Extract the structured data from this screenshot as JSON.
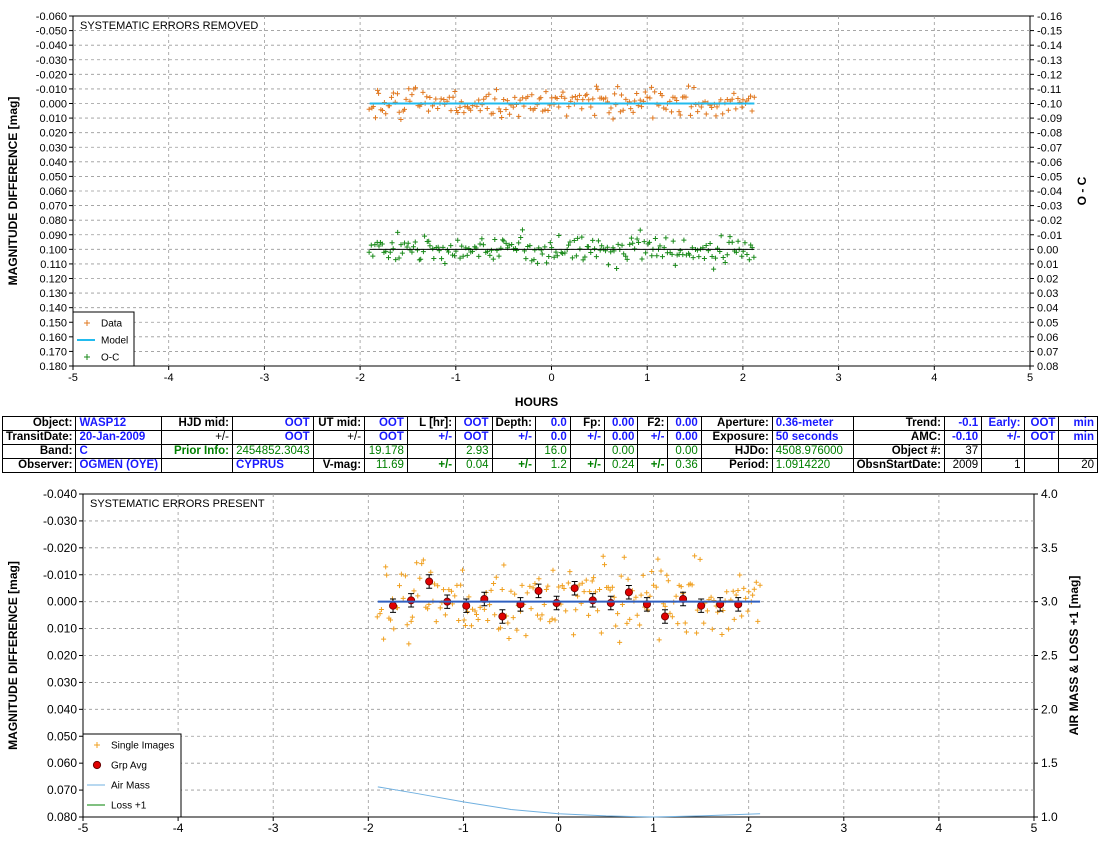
{
  "chart_data": [
    {
      "type": "scatter",
      "title": "SYSTEMATIC ERRORS REMOVED",
      "xlabel": "HOURS",
      "ylabel": "MAGNITUDE DIFFERENCE [mag]",
      "y2label": "O - C",
      "xlim": [
        -5,
        5
      ],
      "ylim": [
        -0.06,
        0.18
      ],
      "y_inverted": true,
      "y2lim": [
        -0.16,
        0.08
      ],
      "x_ticks": [
        "-5",
        "-4",
        "-3",
        "-2",
        "-1",
        "0",
        "1",
        "2",
        "3",
        "4",
        "5"
      ],
      "y_ticks": [
        "-0.060",
        "-0.050",
        "-0.040",
        "-0.030",
        "-0.020",
        "-0.010",
        "0.000",
        "0.010",
        "0.020",
        "0.030",
        "0.040",
        "0.050",
        "0.060",
        "0.070",
        "0.080",
        "0.090",
        "0.100",
        "0.110",
        "0.120",
        "0.130",
        "0.140",
        "0.150",
        "0.160",
        "0.170",
        "0.180"
      ],
      "y2_ticks": [
        "-0.16",
        "-0.15",
        "-0.14",
        "-0.13",
        "-0.12",
        "-0.11",
        "-0.10",
        "-0.09",
        "-0.08",
        "-0.07",
        "-0.06",
        "-0.05",
        "-0.04",
        "-0.03",
        "-0.02",
        "-0.01",
        "0.00",
        "0.01",
        "0.02",
        "0.03",
        "0.04",
        "0.05",
        "0.06",
        "0.07",
        "0.08"
      ],
      "grid": true,
      "legend_position": "bottom-left",
      "legend": [
        "Data",
        "Model",
        "O-C"
      ],
      "series": [
        {
          "name": "Data",
          "kind": "points",
          "marker": "+",
          "color": "#e07820",
          "center": 0.0,
          "scatter": 0.007,
          "x_range": [
            -1.9,
            2.12
          ],
          "count": 210
        },
        {
          "name": "Model",
          "kind": "line",
          "color": "#22bbee",
          "x": [
            -1.9,
            2.12
          ],
          "y": [
            0.0,
            0.0
          ]
        },
        {
          "name": "O-C",
          "kind": "points",
          "marker": "+",
          "color": "#1a8a1a",
          "center": 0.1,
          "scatter": 0.007,
          "x_range": [
            -1.9,
            2.12
          ],
          "count": 210
        },
        {
          "name": "O-C zero",
          "kind": "line",
          "color": "#000000",
          "x": [
            -1.9,
            2.12
          ],
          "y": [
            0.1,
            0.1
          ]
        }
      ]
    },
    {
      "type": "scatter",
      "title": "SYSTEMATIC ERRORS PRESENT",
      "xlabel": "",
      "ylabel": "MAGNITUDE DIFFERENCE [mag]",
      "y2label": "AIR MASS & LOSS +1 [mag]",
      "xlim": [
        -5,
        5
      ],
      "ylim": [
        -0.04,
        0.08
      ],
      "y_inverted": true,
      "y2lim": [
        1.0,
        4.0
      ],
      "x_ticks": [
        "-5",
        "-4",
        "-3",
        "-2",
        "-1",
        "0",
        "1",
        "2",
        "3",
        "4",
        "5"
      ],
      "y_ticks": [
        "-0.040",
        "-0.030",
        "-0.020",
        "-0.010",
        "0.000",
        "0.010",
        "0.020",
        "0.030",
        "0.040",
        "0.050",
        "0.060",
        "0.070",
        "0.080"
      ],
      "y2_ticks": [
        "4.0",
        "3.5",
        "3.0",
        "2.5",
        "2.0",
        "1.5",
        "1.0"
      ],
      "grid": true,
      "legend_position": "bottom-left",
      "legend": [
        "Single Images",
        "Grp Avg",
        "Air Mass",
        "Loss +1"
      ],
      "series": [
        {
          "name": "Single Images",
          "kind": "points",
          "marker": "+",
          "color": "#f0a020",
          "center": 0.0,
          "scatter": 0.01,
          "x_range": [
            -1.9,
            2.12
          ],
          "count": 210
        },
        {
          "name": "Grp Avg",
          "kind": "errorbars",
          "color": "#e00000",
          "x": [
            -1.74,
            -1.55,
            -1.36,
            -1.17,
            -0.97,
            -0.78,
            -0.59,
            -0.4,
            -0.21,
            -0.02,
            0.17,
            0.36,
            0.55,
            0.74,
            0.93,
            1.12,
            1.31,
            1.5,
            1.7,
            1.89
          ],
          "y": [
            0.0015,
            -0.0005,
            -0.0075,
            0.0,
            0.0015,
            -0.001,
            0.0055,
            0.001,
            -0.004,
            0.0005,
            -0.005,
            -0.0005,
            0.0005,
            -0.0035,
            0.001,
            0.0055,
            -0.001,
            0.0015,
            0.001,
            0.001
          ],
          "err": 0.0025
        },
        {
          "name": "Model",
          "kind": "line",
          "color": "#3060c0",
          "x": [
            -1.9,
            2.12
          ],
          "y": [
            0.0,
            0.0
          ]
        },
        {
          "name": "Air Mass",
          "kind": "line",
          "axis": "y2",
          "color": "#70b0e0",
          "x": [
            -1.9,
            -1.5,
            -1.0,
            -0.5,
            0.0,
            0.5,
            1.0,
            1.5,
            2.12
          ],
          "y": [
            1.28,
            1.22,
            1.14,
            1.07,
            1.03,
            1.01,
            1.0,
            1.01,
            1.03
          ]
        },
        {
          "name": "Loss +1",
          "kind": "line",
          "axis": "y2",
          "color": "#008000",
          "x": [],
          "y": []
        }
      ]
    }
  ],
  "info_table": [
    [
      {
        "t": "Object:",
        "c": "l"
      },
      {
        "t": "WASP12",
        "c": "vl blue"
      },
      {
        "t": "HJD mid:",
        "c": "l"
      },
      {
        "t": "OOT",
        "c": "v blue"
      },
      {
        "t": "UT mid:",
        "c": "l"
      },
      {
        "t": "OOT",
        "c": "v blue"
      },
      {
        "t": "L [hr]:",
        "c": "l"
      },
      {
        "t": "OOT",
        "c": "v blue"
      },
      {
        "t": "Depth:",
        "c": "l"
      },
      {
        "t": "0.0",
        "c": "v blue"
      },
      {
        "t": "Fp:",
        "c": "l"
      },
      {
        "t": "0.00",
        "c": "v blue"
      },
      {
        "t": "F2:",
        "c": "l"
      },
      {
        "t": "0.00",
        "c": "v blue"
      },
      {
        "t": "Aperture:",
        "c": "l"
      },
      {
        "t": "0.36-meter",
        "c": "vl blue"
      },
      {
        "t": "Trend:",
        "c": "l"
      },
      {
        "t": "-0.1",
        "c": "v blue"
      },
      {
        "t": "Early:",
        "c": "l blue"
      },
      {
        "t": "OOT",
        "c": "v blue"
      },
      {
        "t": "min",
        "c": "v blue"
      }
    ],
    [
      {
        "t": "TransitDate:",
        "c": "l"
      },
      {
        "t": "20-Jan-2009",
        "c": "vl blue"
      },
      {
        "t": "+/-",
        "c": "v plain"
      },
      {
        "t": "OOT",
        "c": "v blue"
      },
      {
        "t": "+/-",
        "c": "v plain"
      },
      {
        "t": "OOT",
        "c": "v blue"
      },
      {
        "t": "+/-",
        "c": "v blue"
      },
      {
        "t": "OOT",
        "c": "v blue"
      },
      {
        "t": "+/-",
        "c": "v blue"
      },
      {
        "t": "0.0",
        "c": "v blue"
      },
      {
        "t": "+/-",
        "c": "v blue"
      },
      {
        "t": "0.00",
        "c": "v blue"
      },
      {
        "t": "+/-",
        "c": "v blue"
      },
      {
        "t": "0.00",
        "c": "v blue"
      },
      {
        "t": "Exposure:",
        "c": "l"
      },
      {
        "t": "50 seconds",
        "c": "vl blue"
      },
      {
        "t": "AMC:",
        "c": "l"
      },
      {
        "t": "-0.10",
        "c": "v blue"
      },
      {
        "t": "+/-",
        "c": "v blue"
      },
      {
        "t": "OOT",
        "c": "v blue"
      },
      {
        "t": "min",
        "c": "v blue"
      }
    ],
    [
      {
        "t": "Band:",
        "c": "l"
      },
      {
        "t": "C",
        "c": "vl blue"
      },
      {
        "t": "Prior Info:",
        "c": "l greenb"
      },
      {
        "t": "2454852.3043",
        "c": "v green"
      },
      {
        "t": "",
        "c": "v"
      },
      {
        "t": "19.178",
        "c": "v green"
      },
      {
        "t": "",
        "c": "v"
      },
      {
        "t": "2.93",
        "c": "v green"
      },
      {
        "t": "",
        "c": "v"
      },
      {
        "t": "16.0",
        "c": "v green"
      },
      {
        "t": "",
        "c": "v"
      },
      {
        "t": "0.00",
        "c": "v green"
      },
      {
        "t": "",
        "c": "v"
      },
      {
        "t": "0.00",
        "c": "v green"
      },
      {
        "t": "HJDo:",
        "c": "l"
      },
      {
        "t": "4508.976000",
        "c": "vl green"
      },
      {
        "t": "Object #:",
        "c": "l"
      },
      {
        "t": "37",
        "c": "v plain"
      },
      {
        "t": "",
        "c": "v"
      },
      {
        "t": "",
        "c": "v"
      },
      {
        "t": "",
        "c": "v"
      }
    ],
    [
      {
        "t": "Observer:",
        "c": "l"
      },
      {
        "t": "OGMEN (OYE)",
        "c": "vl blue"
      },
      {
        "t": "",
        "c": "v"
      },
      {
        "t": "CYPRUS",
        "c": "vl blue"
      },
      {
        "t": "V-mag:",
        "c": "l"
      },
      {
        "t": "11.69",
        "c": "v green"
      },
      {
        "t": "+/-",
        "c": "v greenb"
      },
      {
        "t": "0.04",
        "c": "v green"
      },
      {
        "t": "+/-",
        "c": "v greenb"
      },
      {
        "t": "1.2",
        "c": "v green"
      },
      {
        "t": "+/-",
        "c": "v greenb"
      },
      {
        "t": "0.24",
        "c": "v green"
      },
      {
        "t": "+/-",
        "c": "v greenb"
      },
      {
        "t": "0.36",
        "c": "v green"
      },
      {
        "t": "Period:",
        "c": "l"
      },
      {
        "t": "1.0914220",
        "c": "vl green"
      },
      {
        "t": "ObsnStartDate:",
        "c": "l"
      },
      {
        "t": "2009",
        "c": "v plain"
      },
      {
        "t": "1",
        "c": "v plain"
      },
      {
        "t": "",
        "c": "v"
      },
      {
        "t": "20",
        "c": "v plain"
      }
    ]
  ]
}
